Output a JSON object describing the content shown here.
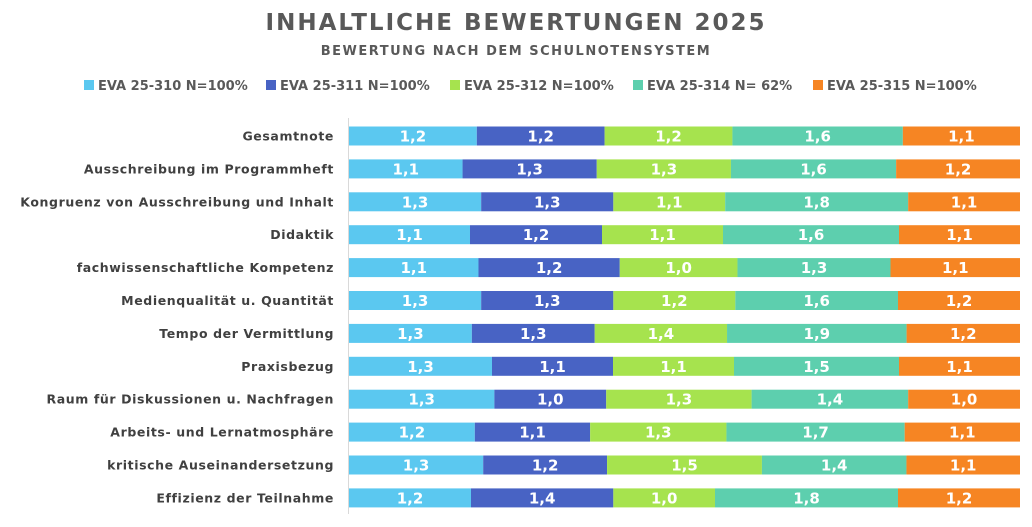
{
  "chart_data": {
    "type": "bar",
    "stacked": true,
    "normalized": true,
    "orientation": "horizontal",
    "title": "INHALTLICHE BEWERTUNGEN 2025",
    "subtitle": "BEWERTUNG NACH DEM SCHULNOTENSYSTEM",
    "legend_position": "top",
    "grid": false,
    "categories": [
      "Gesamtnote",
      "Ausschreibung im Programmheft",
      "Kongruenz von Ausschreibung und Inhalt",
      "Didaktik",
      "fachwissenschaftliche Kompetenz",
      "Medienqualität u. Quantität",
      "Tempo der Vermittlung",
      "Praxisbezug",
      "Raum für Diskussionen u. Nachfragen",
      "Arbeits- und Lernatmosphäre",
      "kritische Auseinandersetzung",
      "Effizienz der Teilnahme"
    ],
    "series": [
      {
        "name": "EVA 25-310 N=100%",
        "color": "#5bc8f0",
        "values": [
          1.2,
          1.1,
          1.3,
          1.1,
          1.1,
          1.3,
          1.3,
          1.3,
          1.3,
          1.2,
          1.3,
          1.2
        ],
        "labels": [
          "1,2",
          "1,1",
          "1,3",
          "1,1",
          "1,1",
          "1,3",
          "1,3",
          "1,3",
          "1,3",
          "1,2",
          "1,3",
          "1,2"
        ]
      },
      {
        "name": "EVA 25-311 N=100%",
        "color": "#4863c4",
        "values": [
          1.2,
          1.3,
          1.3,
          1.2,
          1.2,
          1.3,
          1.3,
          1.1,
          1.0,
          1.1,
          1.2,
          1.4
        ],
        "labels": [
          "1,2",
          "1,3",
          "1,3",
          "1,2",
          "1,2",
          "1,3",
          "1,3",
          "1,1",
          "1,0",
          "1,1",
          "1,2",
          "1,4"
        ]
      },
      {
        "name": "EVA 25-312 N=100%",
        "color": "#a6e34e",
        "values": [
          1.2,
          1.3,
          1.1,
          1.1,
          1.0,
          1.2,
          1.4,
          1.1,
          1.3,
          1.3,
          1.5,
          1.0
        ],
        "labels": [
          "1,2",
          "1,3",
          "1,1",
          "1,1",
          "1,0",
          "1,2",
          "1,4",
          "1,1",
          "1,3",
          "1,3",
          "1,5",
          "1,0"
        ]
      },
      {
        "name": "EVA 25-314 N= 62%",
        "color": "#5dcfae",
        "values": [
          1.6,
          1.6,
          1.8,
          1.6,
          1.3,
          1.6,
          1.9,
          1.5,
          1.4,
          1.7,
          1.4,
          1.8
        ],
        "labels": [
          "1,6",
          "1,6",
          "1,8",
          "1,6",
          "1,3",
          "1,6",
          "1,9",
          "1,5",
          "1,4",
          "1,7",
          "1,4",
          "1,8"
        ]
      },
      {
        "name": "EVA 25-315 N=100%",
        "color": "#f68523",
        "values": [
          1.1,
          1.2,
          1.1,
          1.1,
          1.1,
          1.2,
          1.2,
          1.1,
          1.0,
          1.1,
          1.1,
          1.2
        ],
        "labels": [
          "1,1",
          "1,2",
          "1,1",
          "1,1",
          "1,1",
          "1,2",
          "1,2",
          "1,1",
          "1,0",
          "1,1",
          "1,1",
          "1,2"
        ]
      }
    ]
  }
}
